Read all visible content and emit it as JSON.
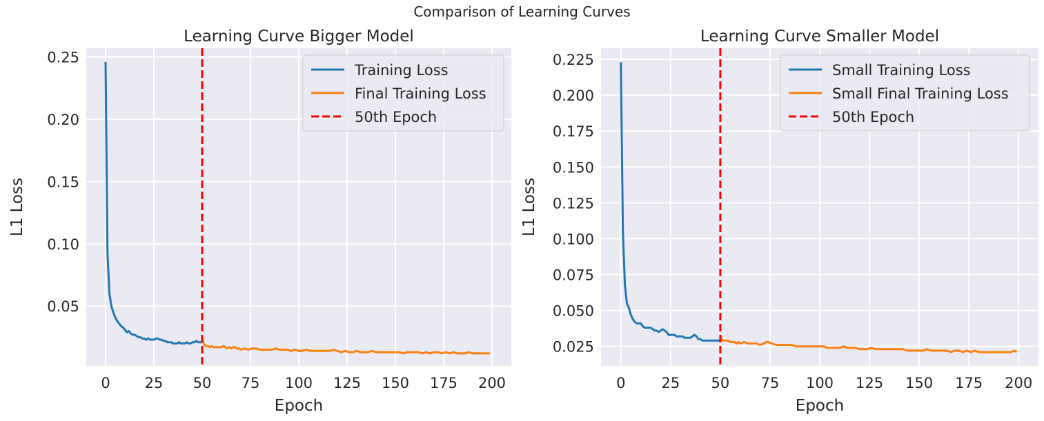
{
  "figure": {
    "suptitle": "Comparison of Learning Curves"
  },
  "colors": {
    "background": "#eaeaf2",
    "grid": "#ffffff",
    "training": "#1f77b4",
    "final": "#ff7f0e",
    "epoch_line": "#ff0000"
  },
  "chart_data": [
    {
      "type": "line",
      "title": "Learning Curve Bigger Model",
      "xlabel": "Epoch",
      "ylabel": "L1 Loss",
      "xlim": [
        -10,
        210
      ],
      "ylim": [
        0.002,
        0.257
      ],
      "xticks": [
        0,
        25,
        50,
        75,
        100,
        125,
        150,
        175,
        200
      ],
      "yticks": [
        0.05,
        0.1,
        0.15,
        0.2,
        0.25
      ],
      "ytick_labels": [
        "0.05",
        "0.10",
        "0.15",
        "0.20",
        "0.25"
      ],
      "grid": true,
      "legend_position": "top-right",
      "vline": {
        "x": 50,
        "name": "50th Epoch"
      },
      "series": [
        {
          "name": "Training Loss",
          "x": [
            0,
            1,
            2,
            3,
            4,
            5,
            6,
            7,
            8,
            9,
            10,
            11,
            12,
            13,
            14,
            15,
            16,
            17,
            18,
            19,
            20,
            21,
            22,
            23,
            24,
            25,
            26,
            27,
            28,
            29,
            30,
            31,
            32,
            33,
            34,
            35,
            36,
            37,
            38,
            39,
            40,
            41,
            42,
            43,
            44,
            45,
            46,
            47,
            48,
            49,
            50
          ],
          "y": [
            0.246,
            0.092,
            0.06,
            0.05,
            0.045,
            0.041,
            0.038,
            0.036,
            0.034,
            0.033,
            0.031,
            0.029,
            0.03,
            0.028,
            0.027,
            0.027,
            0.026,
            0.025,
            0.025,
            0.024,
            0.024,
            0.023,
            0.024,
            0.023,
            0.023,
            0.023,
            0.024,
            0.024,
            0.023,
            0.023,
            0.022,
            0.022,
            0.021,
            0.021,
            0.021,
            0.02,
            0.02,
            0.02,
            0.021,
            0.02,
            0.02,
            0.02,
            0.021,
            0.02,
            0.02,
            0.021,
            0.021,
            0.022,
            0.021,
            0.021,
            0.021
          ]
        },
        {
          "name": "Final Training Loss",
          "x": [
            50,
            51,
            52,
            53,
            54,
            55,
            56,
            57,
            58,
            59,
            60,
            61,
            62,
            63,
            64,
            65,
            66,
            67,
            68,
            69,
            70,
            72,
            74,
            76,
            78,
            80,
            82,
            84,
            86,
            88,
            90,
            92,
            94,
            96,
            98,
            100,
            102,
            104,
            106,
            108,
            110,
            112,
            114,
            116,
            118,
            120,
            122,
            124,
            126,
            128,
            130,
            132,
            134,
            136,
            138,
            140,
            142,
            144,
            146,
            148,
            150,
            152,
            154,
            156,
            158,
            160,
            162,
            164,
            166,
            168,
            170,
            172,
            174,
            176,
            178,
            180,
            182,
            184,
            186,
            188,
            190,
            192,
            194,
            196,
            198,
            199
          ],
          "y": [
            0.024,
            0.019,
            0.018,
            0.018,
            0.017,
            0.018,
            0.017,
            0.017,
            0.017,
            0.017,
            0.017,
            0.018,
            0.017,
            0.016,
            0.017,
            0.016,
            0.017,
            0.017,
            0.016,
            0.016,
            0.015,
            0.016,
            0.015,
            0.016,
            0.016,
            0.015,
            0.015,
            0.015,
            0.015,
            0.016,
            0.015,
            0.015,
            0.015,
            0.014,
            0.015,
            0.014,
            0.014,
            0.015,
            0.014,
            0.014,
            0.014,
            0.014,
            0.014,
            0.014,
            0.015,
            0.014,
            0.013,
            0.014,
            0.013,
            0.013,
            0.014,
            0.013,
            0.013,
            0.013,
            0.014,
            0.013,
            0.013,
            0.013,
            0.013,
            0.013,
            0.013,
            0.013,
            0.012,
            0.013,
            0.013,
            0.013,
            0.013,
            0.012,
            0.013,
            0.012,
            0.013,
            0.013,
            0.012,
            0.013,
            0.012,
            0.013,
            0.012,
            0.012,
            0.012,
            0.013,
            0.012,
            0.012,
            0.012,
            0.012,
            0.012,
            0.012
          ]
        }
      ]
    },
    {
      "type": "line",
      "title": "Learning Curve Smaller Model",
      "xlabel": "Epoch",
      "ylabel": "L1 Loss",
      "xlim": [
        -10,
        210
      ],
      "ylim": [
        0.0114,
        0.2327
      ],
      "xticks": [
        0,
        25,
        50,
        75,
        100,
        125,
        150,
        175,
        200
      ],
      "yticks": [
        0.025,
        0.05,
        0.075,
        0.1,
        0.125,
        0.15,
        0.175,
        0.2,
        0.225
      ],
      "ytick_labels": [
        "0.025",
        "0.050",
        "0.075",
        "0.100",
        "0.125",
        "0.150",
        "0.175",
        "0.200",
        "0.225"
      ],
      "grid": true,
      "legend_position": "top-right",
      "vline": {
        "x": 50,
        "name": "50th Epoch"
      },
      "series": [
        {
          "name": "Small Training Loss",
          "x": [
            0,
            1,
            2,
            3,
            4,
            5,
            6,
            7,
            8,
            9,
            10,
            11,
            12,
            13,
            14,
            15,
            16,
            17,
            18,
            19,
            20,
            21,
            22,
            23,
            24,
            25,
            26,
            27,
            28,
            29,
            30,
            31,
            32,
            33,
            34,
            35,
            36,
            37,
            38,
            39,
            40,
            41,
            42,
            43,
            44,
            45,
            46,
            47,
            48,
            49,
            50
          ],
          "y": [
            0.223,
            0.105,
            0.068,
            0.055,
            0.052,
            0.047,
            0.044,
            0.042,
            0.041,
            0.041,
            0.041,
            0.039,
            0.038,
            0.038,
            0.038,
            0.038,
            0.037,
            0.036,
            0.036,
            0.035,
            0.036,
            0.037,
            0.036,
            0.035,
            0.033,
            0.033,
            0.033,
            0.033,
            0.032,
            0.032,
            0.032,
            0.032,
            0.031,
            0.031,
            0.031,
            0.031,
            0.032,
            0.033,
            0.032,
            0.03,
            0.03,
            0.029,
            0.029,
            0.029,
            0.029,
            0.029,
            0.029,
            0.029,
            0.029,
            0.029,
            0.029
          ]
        },
        {
          "name": "Small Final Training Loss",
          "x": [
            50,
            51,
            52,
            53,
            54,
            55,
            56,
            57,
            58,
            59,
            60,
            62,
            64,
            66,
            68,
            70,
            72,
            73,
            74,
            76,
            78,
            80,
            82,
            84,
            86,
            88,
            90,
            92,
            94,
            96,
            98,
            100,
            102,
            104,
            106,
            108,
            110,
            112,
            114,
            116,
            118,
            120,
            122,
            124,
            126,
            128,
            130,
            132,
            134,
            136,
            138,
            140,
            142,
            144,
            146,
            148,
            150,
            152,
            154,
            156,
            158,
            160,
            162,
            164,
            166,
            168,
            170,
            172,
            174,
            176,
            178,
            180,
            182,
            184,
            186,
            188,
            190,
            192,
            194,
            196,
            198,
            199
          ],
          "y": [
            0.033,
            0.029,
            0.029,
            0.029,
            0.029,
            0.028,
            0.028,
            0.028,
            0.027,
            0.028,
            0.027,
            0.028,
            0.027,
            0.027,
            0.027,
            0.026,
            0.027,
            0.028,
            0.028,
            0.027,
            0.026,
            0.026,
            0.026,
            0.026,
            0.026,
            0.025,
            0.025,
            0.025,
            0.025,
            0.025,
            0.025,
            0.025,
            0.025,
            0.024,
            0.024,
            0.024,
            0.024,
            0.025,
            0.024,
            0.024,
            0.024,
            0.023,
            0.023,
            0.023,
            0.024,
            0.023,
            0.023,
            0.023,
            0.023,
            0.023,
            0.023,
            0.023,
            0.023,
            0.022,
            0.022,
            0.022,
            0.022,
            0.022,
            0.023,
            0.022,
            0.022,
            0.022,
            0.022,
            0.022,
            0.021,
            0.022,
            0.022,
            0.021,
            0.022,
            0.021,
            0.022,
            0.021,
            0.021,
            0.021,
            0.021,
            0.021,
            0.021,
            0.021,
            0.021,
            0.021,
            0.022,
            0.021
          ]
        }
      ]
    }
  ]
}
